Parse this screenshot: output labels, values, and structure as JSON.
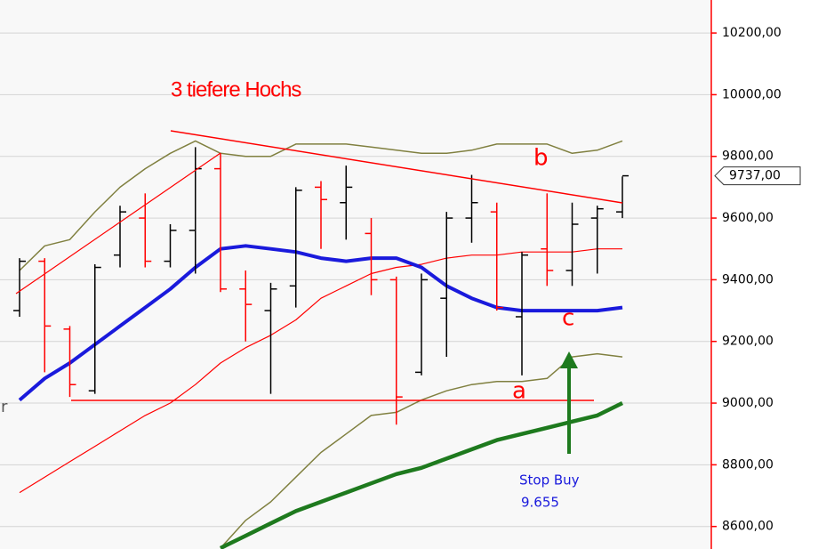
{
  "chart_data": {
    "type": "ohlc",
    "up_color": "#000000",
    "down_color": "#ff0000",
    "open": [
      9300,
      9460,
      9240,
      9040,
      9480,
      9600,
      9460,
      9560,
      9760,
      9370,
      9300,
      9380,
      9700,
      9650,
      9550,
      9400,
      9100,
      9340,
      9600,
      9620,
      9280,
      9500,
      9430,
      9600,
      9620
    ],
    "high": [
      9470,
      9470,
      9250,
      9450,
      9640,
      9680,
      9580,
      9830,
      9810,
      9430,
      9390,
      9700,
      9720,
      9770,
      9600,
      9410,
      9420,
      9620,
      9740,
      9650,
      9490,
      9680,
      9650,
      9640,
      9735
    ],
    "low": [
      9280,
      9100,
      9020,
      9030,
      9440,
      9440,
      9440,
      9420,
      9360,
      9200,
      9030,
      9310,
      9500,
      9530,
      9350,
      8930,
      9090,
      9150,
      9520,
      9300,
      9090,
      9380,
      9380,
      9420,
      9600
    ],
    "close": [
      9460,
      9250,
      9060,
      9440,
      9620,
      9460,
      9560,
      9760,
      9370,
      9320,
      9370,
      9690,
      9660,
      9700,
      9400,
      9020,
      9400,
      9600,
      9650,
      9310,
      9480,
      9430,
      9580,
      9630,
      9737
    ],
    "series": [
      {
        "color": "#808040",
        "width": 1.5,
        "values": [
          9430,
          9510,
          9530,
          9620,
          9700,
          9760,
          9810,
          9850,
          9810,
          9800,
          9800,
          9840,
          9840,
          9840,
          9830,
          9820,
          9810,
          9810,
          9820,
          9840,
          9840,
          9840,
          9810,
          9820,
          9850
        ]
      },
      {
        "color": "#808040",
        "width": 1.5,
        "values": [
          null,
          null,
          null,
          null,
          null,
          null,
          null,
          null,
          8530,
          8620,
          8680,
          8760,
          8840,
          8900,
          8960,
          8970,
          9010,
          9040,
          9060,
          9070,
          9070,
          9080,
          9150,
          9160,
          9150
        ]
      },
      {
        "color": "#ff0000",
        "width": 1.2,
        "values": [
          8710,
          8760,
          8810,
          8860,
          8910,
          8960,
          9000,
          9060,
          9130,
          9180,
          9220,
          9270,
          9340,
          9380,
          9420,
          9440,
          9450,
          9470,
          9480,
          9480,
          9490,
          9490,
          9490,
          9500,
          9500
        ]
      },
      {
        "color": "#1a1adc",
        "width": 4,
        "values": [
          9010,
          9080,
          9130,
          9190,
          9250,
          9310,
          9370,
          9440,
          9500,
          9510,
          9500,
          9490,
          9470,
          9460,
          9470,
          9470,
          9440,
          9380,
          9340,
          9310,
          9300,
          9300,
          9300,
          9300,
          9310
        ]
      },
      {
        "color": "#1e7a1e",
        "width": 4.5,
        "values": [
          null,
          null,
          null,
          null,
          null,
          null,
          null,
          null,
          8530,
          8570,
          8610,
          8650,
          8680,
          8710,
          8740,
          8770,
          8790,
          8820,
          8850,
          8880,
          8900,
          8920,
          8940,
          8960,
          9000
        ]
      }
    ],
    "ylim": [
      8527,
      10307
    ],
    "yticks": [
      {
        "value": 8600,
        "label": "8600,00"
      },
      {
        "value": 8800,
        "label": "8800,00"
      },
      {
        "value": 9000,
        "label": "9000,00"
      },
      {
        "value": 9200,
        "label": "9200,00"
      },
      {
        "value": 9400,
        "label": "9400,00"
      },
      {
        "value": 9600,
        "label": "9600,00"
      },
      {
        "value": 9800,
        "label": "9800,00"
      },
      {
        "value": 10000,
        "label": "10000,00"
      },
      {
        "value": 10200,
        "label": "10200,00"
      }
    ],
    "grid": true,
    "last_price": {
      "value": 9737,
      "label": "9737,00"
    },
    "annotations": [
      "3 tiefere Hochs",
      "a",
      "b",
      "c",
      "Stop Buy",
      "9.655",
      "r"
    ]
  }
}
